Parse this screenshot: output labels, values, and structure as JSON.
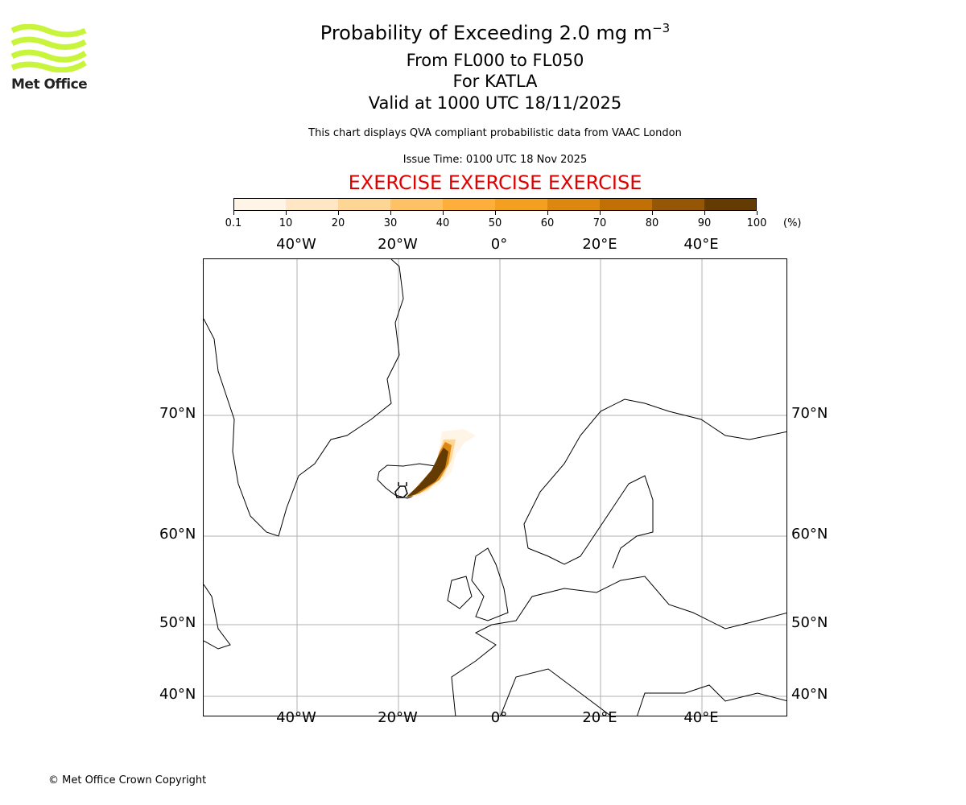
{
  "logo": {
    "text": "Met Office",
    "color": "#c8f53c"
  },
  "title": {
    "line1_prefix": "Probability of Exceeding 2.0 mg m",
    "line1_exp": "−3",
    "line2": "From FL000 to FL050",
    "line3": "For KATLA",
    "line4": "Valid at 1000 UTC 18/11/2025"
  },
  "subtitle": "This chart displays QVA compliant probabilistic data from VAAC London",
  "issue_time": "Issue Time: 0100 UTC 18 Nov 2025",
  "exercise": "EXERCISE EXERCISE EXERCISE",
  "colorbar": {
    "ticks": [
      "0.1",
      "10",
      "20",
      "30",
      "40",
      "50",
      "60",
      "70",
      "80",
      "90",
      "100"
    ],
    "unit": "(%)",
    "colors": [
      "#fff5e6",
      "#ffe6c4",
      "#fdd595",
      "#fec163",
      "#fdae3b",
      "#f39f20",
      "#dc8710",
      "#c07004",
      "#955706",
      "#643c03"
    ]
  },
  "map": {
    "lon_labels": [
      "40°W",
      "20°W",
      "0°",
      "20°E",
      "40°E"
    ],
    "lat_labels": [
      "70°N",
      "60°N",
      "50°N",
      "40°N"
    ],
    "volcano": "KATLA"
  },
  "copyright": "© Met Office Crown Copyright"
}
